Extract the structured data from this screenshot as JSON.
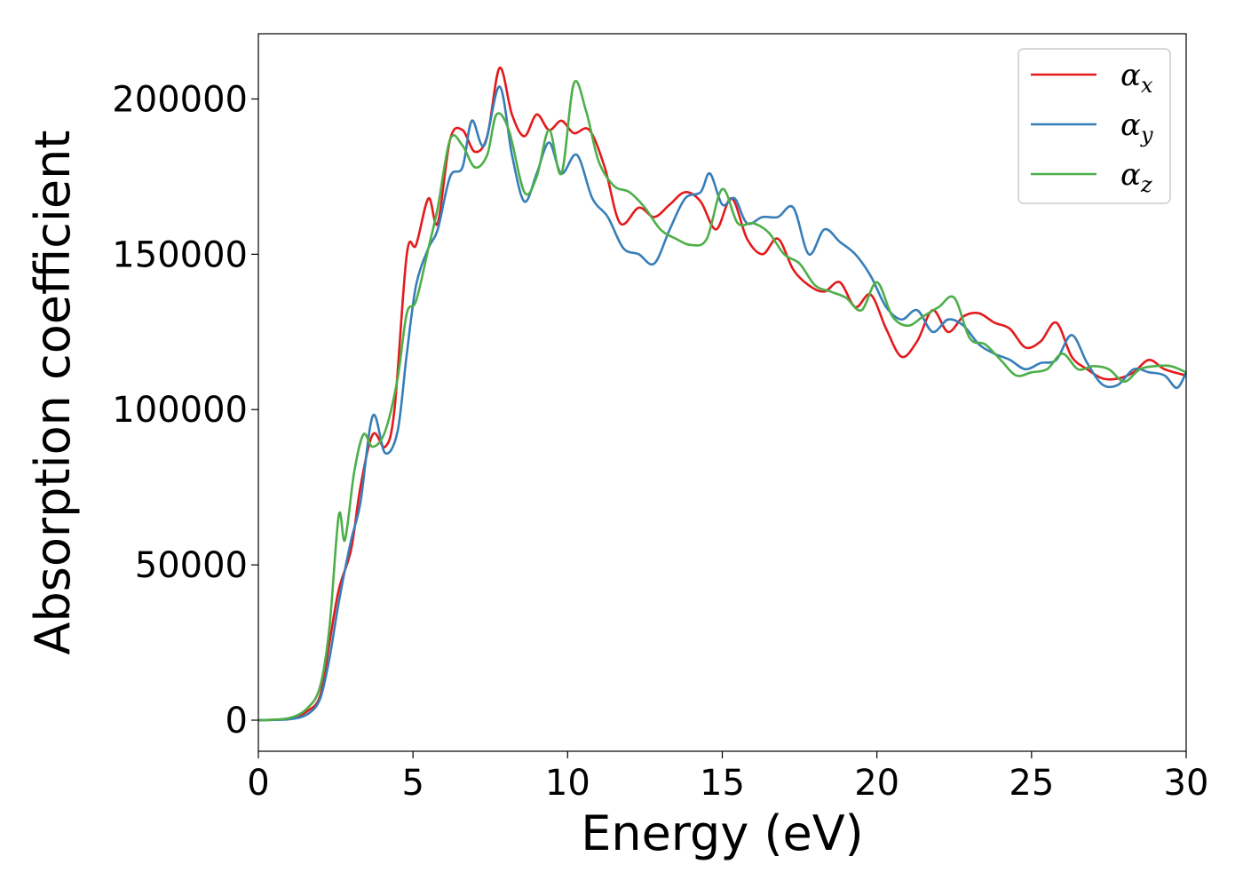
{
  "chart_data": {
    "type": "line",
    "title": "",
    "xlabel": "Energy (eV)",
    "ylabel": "Absorption coefficient",
    "xlim": [
      0,
      30
    ],
    "ylim": [
      -10000,
      221000
    ],
    "xticks": [
      0,
      5,
      10,
      15,
      20,
      25,
      30
    ],
    "yticks": [
      0,
      50000,
      100000,
      150000,
      200000
    ],
    "grid": false,
    "legend_position": "top-right",
    "series": [
      {
        "name": "αx",
        "symbol": "α",
        "subscript": "x",
        "color": "#e41a1c",
        "points": [
          [
            0,
            0
          ],
          [
            1,
            500
          ],
          [
            1.6,
            3000
          ],
          [
            2,
            8000
          ],
          [
            2.3,
            25000
          ],
          [
            2.6,
            42000
          ],
          [
            3,
            55000
          ],
          [
            3.3,
            75000
          ],
          [
            3.7,
            92000
          ],
          [
            4.1,
            88000
          ],
          [
            4.4,
            100000
          ],
          [
            4.8,
            150000
          ],
          [
            5.1,
            153000
          ],
          [
            5.5,
            168000
          ],
          [
            5.8,
            160000
          ],
          [
            6.2,
            187000
          ],
          [
            6.6,
            190000
          ],
          [
            7,
            183000
          ],
          [
            7.4,
            188000
          ],
          [
            7.8,
            210000
          ],
          [
            8.2,
            195000
          ],
          [
            8.6,
            188000
          ],
          [
            9,
            195000
          ],
          [
            9.4,
            190000
          ],
          [
            9.8,
            193000
          ],
          [
            10.2,
            189000
          ],
          [
            10.7,
            190000
          ],
          [
            11.2,
            178000
          ],
          [
            11.7,
            160000
          ],
          [
            12.3,
            165000
          ],
          [
            12.8,
            162000
          ],
          [
            13.3,
            166000
          ],
          [
            13.8,
            170000
          ],
          [
            14.3,
            167000
          ],
          [
            14.8,
            158000
          ],
          [
            15.3,
            168000
          ],
          [
            15.8,
            155000
          ],
          [
            16.3,
            150000
          ],
          [
            16.8,
            155000
          ],
          [
            17.3,
            145000
          ],
          [
            17.8,
            140000
          ],
          [
            18.3,
            138000
          ],
          [
            18.8,
            141000
          ],
          [
            19.3,
            133000
          ],
          [
            19.8,
            137000
          ],
          [
            20.3,
            126000
          ],
          [
            20.8,
            117000
          ],
          [
            21.3,
            122000
          ],
          [
            21.8,
            132000
          ],
          [
            22.3,
            125000
          ],
          [
            22.8,
            130000
          ],
          [
            23.3,
            131000
          ],
          [
            23.8,
            128000
          ],
          [
            24.3,
            126000
          ],
          [
            24.8,
            120000
          ],
          [
            25.3,
            122000
          ],
          [
            25.8,
            128000
          ],
          [
            26.3,
            117000
          ],
          [
            26.8,
            113000
          ],
          [
            27.3,
            110000
          ],
          [
            27.8,
            110000
          ],
          [
            28.3,
            112000
          ],
          [
            28.8,
            116000
          ],
          [
            29.3,
            113000
          ],
          [
            30,
            111000
          ]
        ]
      },
      {
        "name": "αy",
        "symbol": "α",
        "subscript": "y",
        "color": "#377eb8",
        "points": [
          [
            0,
            0
          ],
          [
            1,
            300
          ],
          [
            1.6,
            2000
          ],
          [
            2,
            7000
          ],
          [
            2.3,
            20000
          ],
          [
            2.6,
            38000
          ],
          [
            3,
            58000
          ],
          [
            3.3,
            70000
          ],
          [
            3.7,
            98000
          ],
          [
            4.1,
            86000
          ],
          [
            4.5,
            93000
          ],
          [
            4.8,
            118000
          ],
          [
            5.1,
            140000
          ],
          [
            5.5,
            152000
          ],
          [
            5.8,
            158000
          ],
          [
            6.2,
            175000
          ],
          [
            6.6,
            178000
          ],
          [
            6.9,
            193000
          ],
          [
            7.3,
            185000
          ],
          [
            7.8,
            204000
          ],
          [
            8.2,
            182000
          ],
          [
            8.6,
            167000
          ],
          [
            9,
            176000
          ],
          [
            9.4,
            186000
          ],
          [
            9.8,
            176000
          ],
          [
            10.3,
            182000
          ],
          [
            10.8,
            168000
          ],
          [
            11.3,
            162000
          ],
          [
            11.8,
            152000
          ],
          [
            12.3,
            150000
          ],
          [
            12.8,
            147000
          ],
          [
            13.3,
            158000
          ],
          [
            13.8,
            168000
          ],
          [
            14.3,
            170000
          ],
          [
            14.6,
            176000
          ],
          [
            15,
            166000
          ],
          [
            15.4,
            168000
          ],
          [
            15.8,
            160000
          ],
          [
            16.3,
            162000
          ],
          [
            16.8,
            162000
          ],
          [
            17.3,
            165000
          ],
          [
            17.8,
            150000
          ],
          [
            18.3,
            158000
          ],
          [
            18.8,
            154000
          ],
          [
            19.3,
            150000
          ],
          [
            19.8,
            143000
          ],
          [
            20.3,
            133000
          ],
          [
            20.8,
            129000
          ],
          [
            21.3,
            132000
          ],
          [
            21.8,
            125000
          ],
          [
            22.3,
            129000
          ],
          [
            22.8,
            127000
          ],
          [
            23.3,
            121000
          ],
          [
            23.8,
            118000
          ],
          [
            24.3,
            116000
          ],
          [
            24.8,
            113000
          ],
          [
            25.3,
            115000
          ],
          [
            25.8,
            116000
          ],
          [
            26.3,
            124000
          ],
          [
            26.8,
            115000
          ],
          [
            27.3,
            108000
          ],
          [
            27.8,
            108000
          ],
          [
            28.3,
            113000
          ],
          [
            28.8,
            112000
          ],
          [
            29.3,
            111000
          ],
          [
            29.7,
            107000
          ],
          [
            30,
            112000
          ]
        ]
      },
      {
        "name": "αz",
        "symbol": "α",
        "subscript": "z",
        "color": "#4daf4a",
        "points": [
          [
            0,
            0
          ],
          [
            1,
            700
          ],
          [
            1.6,
            4000
          ],
          [
            2,
            11000
          ],
          [
            2.3,
            30000
          ],
          [
            2.6,
            66000
          ],
          [
            2.8,
            58000
          ],
          [
            3.1,
            80000
          ],
          [
            3.4,
            92000
          ],
          [
            3.7,
            88000
          ],
          [
            4.1,
            93000
          ],
          [
            4.5,
            110000
          ],
          [
            4.8,
            131000
          ],
          [
            5.1,
            135000
          ],
          [
            5.5,
            152000
          ],
          [
            5.8,
            165000
          ],
          [
            6.2,
            187000
          ],
          [
            6.6,
            185000
          ],
          [
            7,
            178000
          ],
          [
            7.4,
            182000
          ],
          [
            7.7,
            195000
          ],
          [
            8.1,
            190000
          ],
          [
            8.6,
            170000
          ],
          [
            9,
            175000
          ],
          [
            9.4,
            190000
          ],
          [
            9.8,
            176000
          ],
          [
            10.2,
            205000
          ],
          [
            10.6,
            196000
          ],
          [
            11,
            180000
          ],
          [
            11.5,
            172000
          ],
          [
            12,
            170000
          ],
          [
            12.5,
            165000
          ],
          [
            13,
            158000
          ],
          [
            13.5,
            155000
          ],
          [
            14,
            153000
          ],
          [
            14.5,
            155000
          ],
          [
            15,
            171000
          ],
          [
            15.5,
            160000
          ],
          [
            16,
            160000
          ],
          [
            16.5,
            157000
          ],
          [
            17,
            150000
          ],
          [
            17.5,
            147000
          ],
          [
            18,
            140000
          ],
          [
            18.5,
            138000
          ],
          [
            19,
            136000
          ],
          [
            19.5,
            132000
          ],
          [
            20,
            141000
          ],
          [
            20.5,
            130000
          ],
          [
            21,
            127000
          ],
          [
            21.5,
            130000
          ],
          [
            22,
            133000
          ],
          [
            22.5,
            136000
          ],
          [
            23,
            123000
          ],
          [
            23.5,
            121000
          ],
          [
            24,
            116000
          ],
          [
            24.5,
            111000
          ],
          [
            25,
            112000
          ],
          [
            25.5,
            113000
          ],
          [
            26,
            118000
          ],
          [
            26.5,
            113000
          ],
          [
            27,
            114000
          ],
          [
            27.5,
            113000
          ],
          [
            28,
            109000
          ],
          [
            28.5,
            113000
          ],
          [
            29,
            114000
          ],
          [
            29.5,
            114000
          ],
          [
            30,
            112000
          ]
        ]
      }
    ]
  }
}
